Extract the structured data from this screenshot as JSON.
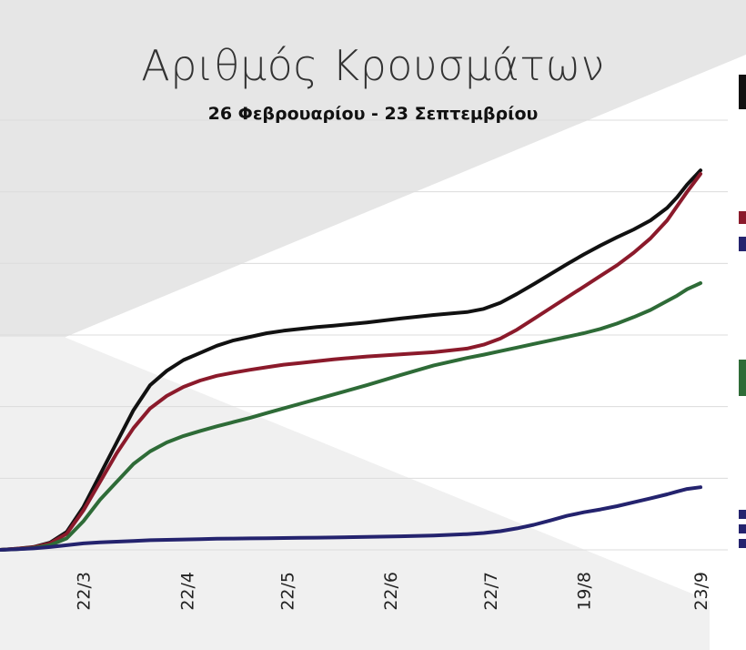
{
  "chart_data": {
    "type": "line",
    "title": "Αριθμός Κρουσμάτων",
    "subtitle": "26 Φεβρουαρίου - 23 Σεπτεμβρίου",
    "x_ticks": [
      {
        "day": 25,
        "label": "22/3"
      },
      {
        "day": 56,
        "label": "22/4"
      },
      {
        "day": 86,
        "label": "22/5"
      },
      {
        "day": 117,
        "label": "22/6"
      },
      {
        "day": 147,
        "label": "22/7"
      },
      {
        "day": 175,
        "label": "19/8"
      },
      {
        "day": 210,
        "label": "23/9"
      }
    ],
    "y_gridlines": 6,
    "grid": true,
    "x": [
      0,
      5,
      10,
      15,
      20,
      25,
      30,
      35,
      40,
      45,
      50,
      55,
      60,
      65,
      70,
      75,
      80,
      85,
      90,
      95,
      100,
      110,
      120,
      130,
      140,
      145,
      150,
      155,
      160,
      165,
      170,
      175,
      180,
      185,
      190,
      195,
      200,
      203,
      206,
      210
    ],
    "series": [
      {
        "color": "#111111",
        "values": [
          0,
          0.3,
          0.8,
          2.0,
          5.0,
          12,
          21,
          30,
          39,
          46,
          50,
          53,
          55,
          57,
          58.5,
          59.5,
          60.5,
          61.2,
          61.7,
          62.2,
          62.6,
          63.5,
          64.6,
          65.6,
          66.4,
          67.3,
          69.0,
          71.5,
          74.2,
          77.0,
          79.8,
          82.5,
          85.0,
          87.3,
          89.5,
          92.0,
          95.5,
          98.5,
          102,
          106
        ]
      },
      {
        "color": "#8b1a2b",
        "values": [
          0,
          0.3,
          0.7,
          1.8,
          4.5,
          11,
          19,
          27,
          34,
          39.5,
          43,
          45.5,
          47.3,
          48.6,
          49.5,
          50.3,
          51.0,
          51.7,
          52.2,
          52.7,
          53.2,
          54.0,
          54.6,
          55.2,
          56.2,
          57.3,
          59.0,
          61.5,
          64.5,
          67.5,
          70.5,
          73.5,
          76.5,
          79.5,
          83.0,
          87.0,
          92.0,
          96.0,
          100,
          105
        ]
      },
      {
        "color": "#2e6b37",
        "values": [
          0,
          0.2,
          0.5,
          1.3,
          3.2,
          8,
          14,
          19,
          24,
          27.5,
          30,
          31.8,
          33.2,
          34.5,
          35.7,
          36.9,
          38.2,
          39.5,
          40.8,
          42.1,
          43.4,
          46.0,
          48.8,
          51.5,
          53.6,
          54.5,
          55.5,
          56.5,
          57.5,
          58.5,
          59.5,
          60.5,
          61.7,
          63.2,
          65.0,
          67.0,
          69.5,
          71.0,
          72.8,
          74.5
        ]
      },
      {
        "color": "#24236e",
        "values": [
          0,
          0.2,
          0.4,
          0.8,
          1.3,
          1.8,
          2.1,
          2.3,
          2.5,
          2.7,
          2.8,
          2.9,
          3.0,
          3.1,
          3.15,
          3.2,
          3.25,
          3.3,
          3.35,
          3.4,
          3.45,
          3.6,
          3.8,
          4.0,
          4.4,
          4.7,
          5.2,
          6.0,
          7.0,
          8.2,
          9.5,
          10.5,
          11.3,
          12.2,
          13.3,
          14.4,
          15.5,
          16.3,
          17.0,
          17.5
        ]
      }
    ]
  }
}
